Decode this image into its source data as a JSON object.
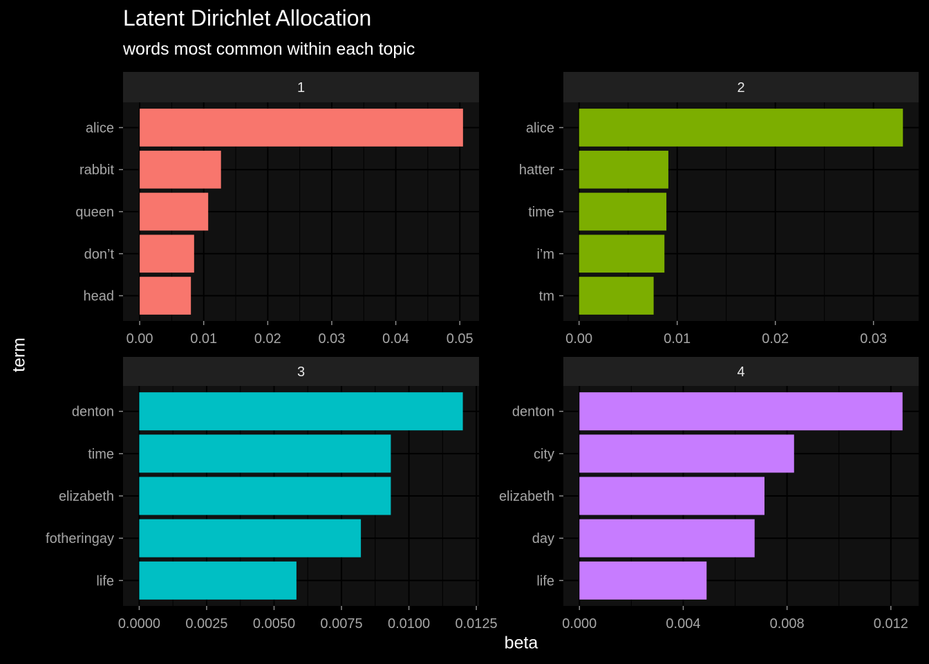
{
  "chart_data": {
    "type": "bar",
    "orientation": "horizontal",
    "title": "Latent Dirichlet Allocation",
    "subtitle": "words most common within each topic",
    "xlabel": "beta",
    "ylabel": "term",
    "grid": true,
    "theme": "dark",
    "facets": [
      {
        "label": "1",
        "color": "#F8766D",
        "categories": [
          "alice",
          "rabbit",
          "queen",
          "don’t",
          "head"
        ],
        "values": [
          0.0505,
          0.0127,
          0.0107,
          0.0085,
          0.008
        ],
        "xlim": [
          -0.0026,
          0.053
        ],
        "ticks": [
          0,
          0.01,
          0.02,
          0.03,
          0.04,
          0.05
        ],
        "tick_labels": [
          "0.00",
          "0.01",
          "0.02",
          "0.03",
          "0.04",
          "0.05"
        ]
      },
      {
        "label": "2",
        "color": "#7CAE00",
        "categories": [
          "alice",
          "hatter",
          "time",
          "i’m",
          "tm"
        ],
        "values": [
          0.033,
          0.0091,
          0.0089,
          0.0087,
          0.0076
        ],
        "xlim": [
          -0.0016,
          0.0346
        ],
        "ticks": [
          0,
          0.01,
          0.02,
          0.03
        ],
        "tick_labels": [
          "0.00",
          "0.01",
          "0.02",
          "0.03"
        ]
      },
      {
        "label": "3",
        "color": "#00BFC4",
        "categories": [
          "denton",
          "time",
          "elizabeth",
          "fotheringay",
          "life"
        ],
        "values": [
          0.012,
          0.00933,
          0.00933,
          0.00822,
          0.00583
        ],
        "xlim": [
          -0.0006,
          0.0126
        ],
        "ticks": [
          0,
          0.0025,
          0.005,
          0.0075,
          0.01,
          0.0125
        ],
        "tick_labels": [
          "0.0000",
          "0.0025",
          "0.0050",
          "0.0075",
          "0.0100",
          "0.0125"
        ]
      },
      {
        "label": "4",
        "color": "#C77CFF",
        "categories": [
          "denton",
          "city",
          "elizabeth",
          "day",
          "life"
        ],
        "values": [
          0.01245,
          0.00827,
          0.00713,
          0.00675,
          0.0049
        ],
        "xlim": [
          -0.00062,
          0.01307
        ],
        "ticks": [
          0,
          0.004,
          0.008,
          0.012
        ],
        "tick_labels": [
          "0.000",
          "0.004",
          "0.008",
          "0.012"
        ]
      }
    ]
  }
}
